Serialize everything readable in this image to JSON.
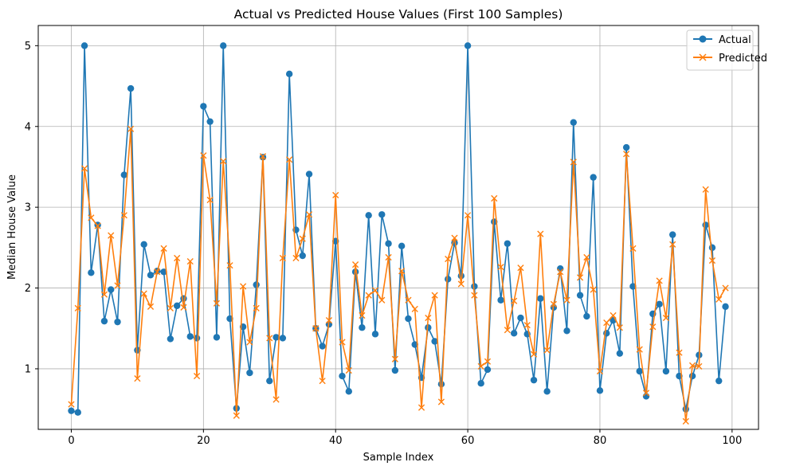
{
  "chart_data": {
    "type": "line",
    "title": "Actual vs Predicted House Values (First 100 Samples)",
    "xlabel": "Sample Index",
    "ylabel": "Median House Value",
    "xlim": [
      -5,
      104
    ],
    "ylim": [
      0.25,
      5.25
    ],
    "xticks": [
      0,
      20,
      40,
      60,
      80,
      100
    ],
    "yticks": [
      1,
      2,
      3,
      4,
      5
    ],
    "grid": true,
    "legend_position": "upper right",
    "x": [
      0,
      1,
      2,
      3,
      4,
      5,
      6,
      7,
      8,
      9,
      10,
      11,
      12,
      13,
      14,
      15,
      16,
      17,
      18,
      19,
      20,
      21,
      22,
      23,
      24,
      25,
      26,
      27,
      28,
      29,
      30,
      31,
      32,
      33,
      34,
      35,
      36,
      37,
      38,
      39,
      40,
      41,
      42,
      43,
      44,
      45,
      46,
      47,
      48,
      49,
      50,
      51,
      52,
      53,
      54,
      55,
      56,
      57,
      58,
      59,
      60,
      61,
      62,
      63,
      64,
      65,
      66,
      67,
      68,
      69,
      70,
      71,
      72,
      73,
      74,
      75,
      76,
      77,
      78,
      79,
      80,
      81,
      82,
      83,
      84,
      85,
      86,
      87,
      88,
      89,
      90,
      91,
      92,
      93,
      94,
      95,
      96,
      97,
      98,
      99
    ],
    "series": [
      {
        "name": "Actual",
        "color": "#1f77b4",
        "marker": "circle",
        "values": [
          0.48,
          0.46,
          5.0,
          2.19,
          2.78,
          1.59,
          1.98,
          1.58,
          3.4,
          4.47,
          1.23,
          2.54,
          2.16,
          2.21,
          2.2,
          1.37,
          1.78,
          1.87,
          1.4,
          1.38,
          4.25,
          4.06,
          1.39,
          5.0,
          1.62,
          0.51,
          1.52,
          0.95,
          2.04,
          3.62,
          0.85,
          1.39,
          1.38,
          4.65,
          2.72,
          2.4,
          3.41,
          1.5,
          1.28,
          1.55,
          2.58,
          0.91,
          0.72,
          2.2,
          1.51,
          2.9,
          1.43,
          2.91,
          2.55,
          0.98,
          2.52,
          1.62,
          1.3,
          0.89,
          1.51,
          1.34,
          0.81,
          2.11,
          2.56,
          2.15,
          5.0,
          2.02,
          0.82,
          0.99,
          2.82,
          1.85,
          2.55,
          1.44,
          1.63,
          1.43,
          0.86,
          1.87,
          0.72,
          1.76,
          2.24,
          1.47,
          4.05,
          1.91,
          1.65,
          3.37,
          0.73,
          1.44,
          1.6,
          1.19,
          3.74,
          2.02,
          0.97,
          0.66,
          1.68,
          1.8,
          0.97,
          2.66,
          0.91,
          0.5,
          0.91,
          1.17,
          2.78,
          2.5,
          0.85,
          1.77
        ]
      },
      {
        "name": "Predicted",
        "color": "#ff7f0e",
        "marker": "x",
        "values": [
          0.56,
          1.75,
          3.48,
          2.87,
          2.77,
          1.92,
          2.65,
          2.03,
          2.9,
          3.97,
          0.88,
          1.93,
          1.77,
          2.2,
          2.49,
          1.75,
          2.37,
          1.76,
          2.33,
          0.91,
          3.64,
          3.09,
          1.81,
          3.57,
          2.28,
          0.42,
          2.02,
          1.33,
          1.75,
          3.63,
          1.38,
          0.62,
          2.37,
          3.59,
          2.37,
          2.61,
          2.91,
          1.5,
          0.85,
          1.6,
          3.15,
          1.33,
          0.98,
          2.29,
          1.66,
          1.91,
          1.97,
          1.85,
          2.38,
          1.12,
          2.21,
          1.85,
          1.74,
          0.52,
          1.63,
          1.91,
          0.59,
          2.36,
          2.62,
          2.05,
          2.9,
          1.91,
          1.03,
          1.09,
          3.11,
          2.26,
          1.48,
          1.84,
          2.25,
          1.54,
          1.18,
          2.67,
          1.23,
          1.8,
          2.2,
          1.85,
          3.56,
          2.13,
          2.38,
          1.98,
          0.97,
          1.57,
          1.66,
          1.51,
          3.66,
          2.49,
          1.24,
          0.7,
          1.52,
          2.09,
          1.63,
          2.54,
          1.2,
          0.35,
          1.04,
          1.03,
          3.22,
          2.34,
          1.86,
          2.0
        ]
      }
    ]
  }
}
